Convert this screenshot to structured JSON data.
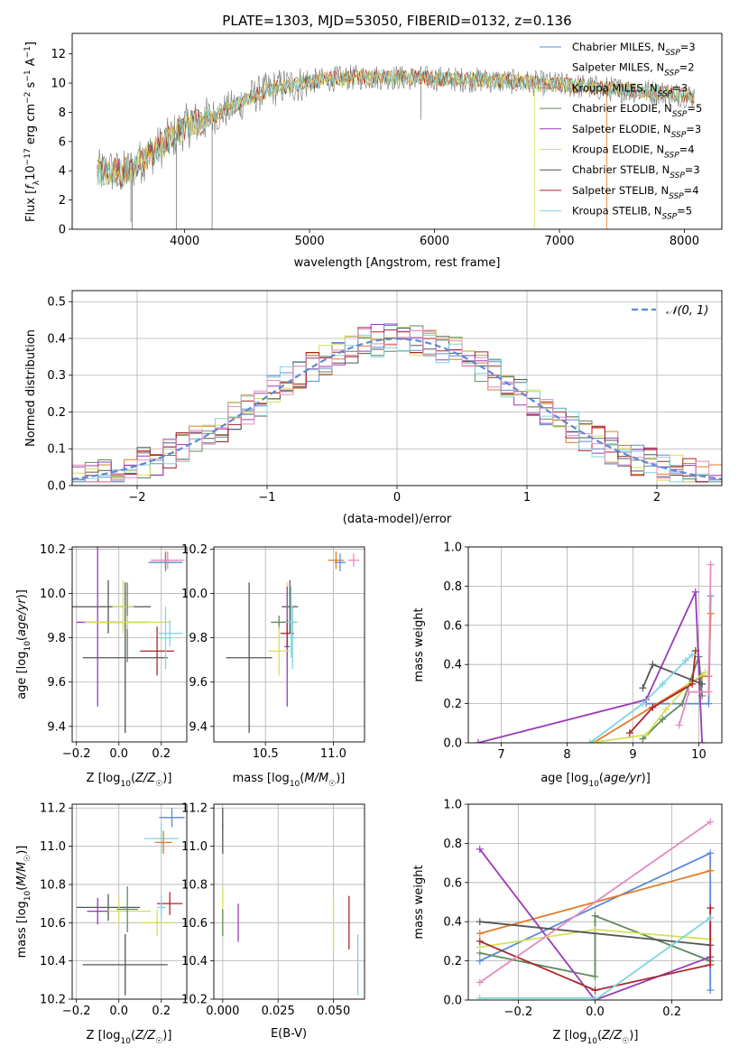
{
  "figure": {
    "title": "PLATE=1303, MJD=53050, FIBERID=0132, z=0.136"
  },
  "colors": {
    "Chabrier MILES": "#5b8ad8",
    "Salpeter MILES": "#ffffff",
    "Kroupa MILES": "#e07b28",
    "Chabrier ELODIE": "#5f8a5f",
    "Salpeter ELODIE": "#9a3bb8",
    "Kroupa ELODIE": "#d6e05a",
    "Chabrier STELIB": "#555555",
    "Salpeter STELIB": "#a8262a",
    "Kroupa STELIB": "#7fd4de",
    "pink": "#e58ac0",
    "gray_data": "#777777",
    "grid": "#b0b0b0",
    "gauss": "#5b8ad8"
  },
  "chart_data": [
    {
      "id": "spectrum",
      "type": "line",
      "title": "PLATE=1303, MJD=53050, FIBERID=0132, z=0.136",
      "xlabel": "wavelength [Angstrom, rest frame]",
      "ylabel": "Flux [f_λ 10^-17 erg cm^-2 s^-1 A^-1]",
      "xlim": [
        3100,
        8300
      ],
      "ylim": [
        0,
        13.4
      ],
      "xticks": [
        4000,
        5000,
        6000,
        7000,
        8000
      ],
      "yticks": [
        0,
        2,
        4,
        6,
        8,
        10,
        12
      ],
      "grid": false,
      "legend_position": "top-right",
      "continuum": {
        "x": [
          3300,
          3400,
          3500,
          3600,
          3700,
          3800,
          3900,
          4000,
          4100,
          4200,
          4300,
          4400,
          4500,
          4600,
          4700,
          4800,
          4900,
          5000,
          5200,
          5400,
          5600,
          5800,
          6000,
          6200,
          6400,
          6600,
          6800,
          7000,
          7200,
          7400,
          7600,
          7800,
          8000,
          8080
        ],
        "y": [
          3.9,
          4.0,
          3.8,
          4.3,
          5.0,
          5.6,
          6.3,
          7.0,
          7.3,
          7.6,
          8.0,
          8.4,
          8.9,
          9.3,
          9.6,
          9.8,
          9.9,
          10.1,
          10.3,
          10.4,
          10.4,
          10.35,
          10.3,
          10.25,
          10.2,
          10.1,
          10.0,
          9.9,
          9.75,
          9.6,
          9.5,
          9.35,
          9.2,
          9.1
        ]
      },
      "series": [
        {
          "name": "Chabrier MILES, N_SSP=3"
        },
        {
          "name": "Salpeter MILES, N_SSP=2"
        },
        {
          "name": "Kroupa MILES, N_SSP=3"
        },
        {
          "name": "Chabrier ELODIE, N_SSP=5"
        },
        {
          "name": "Salpeter ELODIE, N_SSP=3"
        },
        {
          "name": "Kroupa ELODIE, N_SSP=4"
        },
        {
          "name": "Chabrier STELIB, N_SSP=3"
        },
        {
          "name": "Salpeter STELIB, N_SSP=4"
        },
        {
          "name": "Kroupa STELIB, N_SSP=5"
        }
      ]
    },
    {
      "id": "residuals",
      "type": "line",
      "xlabel": "(data-model)/error",
      "ylabel": "Normed distribution",
      "xlim": [
        -2.5,
        2.5
      ],
      "ylim": [
        0,
        0.53
      ],
      "xticks": [
        -2,
        -1,
        0,
        1,
        2
      ],
      "yticks": [
        0.0,
        0.1,
        0.2,
        0.3,
        0.4,
        0.5
      ],
      "grid": true,
      "legend_position": "top-right",
      "gaussian_label": "𝒩(0, 1)",
      "bin_width": 0.1,
      "bin_start": -2.5
    },
    {
      "id": "age_Z",
      "type": "scatter",
      "xlabel": "Z [log10(Z/Z☉)]",
      "ylabel": "age [log10(age/yr)]",
      "xlim": [
        -0.22,
        0.32
      ],
      "ylim": [
        9.33,
        10.21
      ],
      "xticks": [
        -0.2,
        0.0,
        0.2
      ],
      "yticks": [
        9.4,
        9.6,
        9.8,
        10.0,
        10.2
      ],
      "grid": true,
      "points": [
        {
          "x": -0.05,
          "y": 9.94,
          "ex": 0.2,
          "ey": 0.12
        },
        {
          "x": 0.03,
          "y": 9.71,
          "ex": 0.2,
          "ey": 0.34
        },
        {
          "x": 0.02,
          "y": 9.94,
          "ex": 0.05,
          "ey": 0.12
        },
        {
          "x": 0.04,
          "y": 9.87,
          "ex": 0.1,
          "ey": 0.18
        },
        {
          "x": -0.1,
          "y": 9.87,
          "ex": 0.1,
          "ey": 0.38
        },
        {
          "x": 0.04,
          "y": 9.87,
          "ex": 0.2,
          "ey": 0.03
        },
        {
          "x": 0.18,
          "y": 9.74,
          "ex": 0.08,
          "ey": 0.11
        },
        {
          "x": 0.24,
          "y": 9.82,
          "ex": 0.06,
          "ey": 0.06
        },
        {
          "x": 0.22,
          "y": 9.8,
          "ex": 0.03,
          "ey": 0.14
        },
        {
          "x": 0.22,
          "y": 10.15,
          "ex": 0.06,
          "ey": 0.04
        },
        {
          "x": 0.22,
          "y": 10.14,
          "ex": 0.08,
          "ey": 0.04
        },
        {
          "x": 0.23,
          "y": 10.15,
          "ex": 0.08,
          "ey": 0.04
        }
      ]
    },
    {
      "id": "age_mass",
      "type": "scatter",
      "xlabel": "mass [log10(M/M☉)]",
      "ylabel": "",
      "xlim": [
        10.12,
        11.23
      ],
      "ylim": [
        9.33,
        10.21
      ],
      "xticks": [
        10.5,
        11.0
      ],
      "yticks": [
        9.4,
        9.6,
        9.8,
        10.0,
        10.2
      ],
      "grid": true,
      "points": [
        {
          "x": 10.38,
          "y": 9.71,
          "ex": 0.17,
          "ey": 0.34
        },
        {
          "x": 10.68,
          "y": 9.94,
          "ex": 0.06,
          "ey": 0.12
        },
        {
          "x": 10.66,
          "y": 9.87,
          "ex": 0.08,
          "ey": 0.18
        },
        {
          "x": 10.6,
          "y": 9.87,
          "ex": 0.06,
          "ey": 0.03
        },
        {
          "x": 10.66,
          "y": 9.76,
          "ex": 0.02,
          "ey": 0.27
        },
        {
          "x": 10.6,
          "y": 9.74,
          "ex": 0.08,
          "ey": 0.11
        },
        {
          "x": 10.66,
          "y": 9.82,
          "ex": 0.05,
          "ey": 0.06
        },
        {
          "x": 10.7,
          "y": 9.8,
          "ex": 0.02,
          "ey": 0.14
        },
        {
          "x": 10.69,
          "y": 9.87,
          "ex": 0.04,
          "ey": 0.16
        },
        {
          "x": 11.02,
          "y": 10.15,
          "ex": 0.06,
          "ey": 0.04
        },
        {
          "x": 11.05,
          "y": 10.14,
          "ex": 0.04,
          "ey": 0.04
        },
        {
          "x": 11.15,
          "y": 10.15,
          "ex": 0.04,
          "ey": 0.03
        }
      ]
    },
    {
      "id": "massweight_age",
      "type": "line",
      "xlabel": "age [log10(age/yr)]",
      "ylabel": "mass weight",
      "xlim": [
        6.5,
        10.35
      ],
      "ylim": [
        0,
        1.0
      ],
      "xticks": [
        7,
        8,
        9,
        10
      ],
      "yticks": [
        0.0,
        0.2,
        0.4,
        0.6,
        0.8,
        1.0
      ],
      "grid": true,
      "series": [
        {
          "key": "Chabrier MILES",
          "x": [
            9.2,
            10.15,
            10.18
          ],
          "y": [
            0.2,
            0.2,
            0.75
          ]
        },
        {
          "key": "Kroupa MILES",
          "x": [
            8.4,
            10.05,
            10.15,
            10.18
          ],
          "y": [
            0.0,
            0.34,
            0.34,
            0.66
          ]
        },
        {
          "key": "Chabrier ELODIE",
          "x": [
            9.15,
            9.45,
            9.75,
            10.0,
            10.05
          ],
          "y": [
            0.02,
            0.12,
            0.2,
            0.44,
            0.24
          ]
        },
        {
          "key": "Salpeter ELODIE",
          "x": [
            6.65,
            9.2,
            9.95,
            10.05
          ],
          "y": [
            0.0,
            0.22,
            0.77,
            0.0
          ]
        },
        {
          "key": "Kroupa ELODIE",
          "x": [
            8.35,
            9.2,
            9.5,
            9.85,
            10.1
          ],
          "y": [
            0.0,
            0.04,
            0.17,
            0.3,
            0.36
          ]
        },
        {
          "key": "Chabrier STELIB",
          "x": [
            9.15,
            9.3,
            10.05
          ],
          "y": [
            0.28,
            0.4,
            0.3
          ]
        },
        {
          "key": "Salpeter STELIB",
          "x": [
            8.95,
            9.3,
            9.9,
            9.95
          ],
          "y": [
            0.05,
            0.18,
            0.3,
            0.47
          ]
        },
        {
          "key": "Kroupa STELIB",
          "x": [
            8.35,
            9.15,
            9.45,
            9.8,
            9.9
          ],
          "y": [
            0.0,
            0.2,
            0.3,
            0.42,
            0.45
          ]
        },
        {
          "key": "pink",
          "x": [
            9.7,
            9.85,
            10.15,
            10.18
          ],
          "y": [
            0.09,
            0.26,
            0.26,
            0.91
          ]
        }
      ]
    },
    {
      "id": "mass_Z",
      "type": "scatter",
      "xlabel": "Z [log10(Z/Z☉)]",
      "ylabel": "mass [log10(M/M☉)]",
      "xlim": [
        -0.22,
        0.32
      ],
      "ylim": [
        10.2,
        11.22
      ],
      "xticks": [
        -0.2,
        0.0,
        0.2
      ],
      "yticks": [
        10.2,
        10.4,
        10.6,
        10.8,
        11.0,
        11.2
      ],
      "grid": true,
      "points": [
        {
          "x": 0.03,
          "y": 10.38,
          "ex": 0.2,
          "ey": 0.16
        },
        {
          "x": -0.05,
          "y": 10.68,
          "ex": 0.15,
          "ey": 0.07
        },
        {
          "x": 0.0,
          "y": 10.66,
          "ex": 0.15,
          "ey": 0.07
        },
        {
          "x": 0.04,
          "y": 10.67,
          "ex": 0.05,
          "ey": 0.12
        },
        {
          "x": -0.1,
          "y": 10.66,
          "ex": 0.05,
          "ey": 0.07
        },
        {
          "x": 0.18,
          "y": 10.6,
          "ex": 0.08,
          "ey": 0.07
        },
        {
          "x": 0.24,
          "y": 10.7,
          "ex": 0.06,
          "ey": 0.06
        },
        {
          "x": 0.2,
          "y": 10.68,
          "ex": 0.02,
          "ey": 0.06
        },
        {
          "x": 0.2,
          "y": 11.04,
          "ex": 0.08,
          "ey": 0.08
        },
        {
          "x": 0.21,
          "y": 11.02,
          "ex": 0.04,
          "ey": 0.06
        },
        {
          "x": 0.25,
          "y": 11.15,
          "ex": 0.06,
          "ey": 0.05
        }
      ]
    },
    {
      "id": "mass_EBV",
      "type": "scatter",
      "xlabel": "E(B-V)",
      "ylabel": "",
      "xlim": [
        -0.004,
        0.064
      ],
      "ylim": [
        10.2,
        11.22
      ],
      "xticks": [
        0.0,
        0.025,
        0.05
      ],
      "yticks": [
        10.2,
        10.4,
        10.6,
        10.8,
        11.0,
        11.2
      ],
      "grid": true,
      "points": [
        {
          "x": 0.0,
          "y": 11.04,
          "ex": 0.0,
          "ey": 0.08
        },
        {
          "x": 0.0,
          "y": 11.15,
          "ex": 0.0,
          "ey": 0.05
        },
        {
          "x": 0.0,
          "y": 10.66,
          "ex": 0.0,
          "ey": 0.12
        },
        {
          "x": 0.0,
          "y": 10.6,
          "ex": 0.0,
          "ey": 0.07
        },
        {
          "x": 0.007,
          "y": 10.6,
          "ex": 0.0,
          "ey": 0.1
        },
        {
          "x": 0.05,
          "y": 10.6,
          "ex": 0.0,
          "ey": 0.14
        },
        {
          "x": 0.057,
          "y": 10.6,
          "ex": 0.0,
          "ey": 0.14
        },
        {
          "x": 0.061,
          "y": 10.38,
          "ex": 0.0,
          "ey": 0.16
        }
      ]
    },
    {
      "id": "massweight_Z",
      "type": "line",
      "xlabel": "Z [log10(Z/Z☉)]",
      "ylabel": "mass weight",
      "xlim": [
        -0.33,
        0.33
      ],
      "ylim": [
        0,
        1.0
      ],
      "xticks": [
        -0.2,
        0.0,
        0.2
      ],
      "yticks": [
        0.0,
        0.2,
        0.4,
        0.6,
        0.8,
        1.0
      ],
      "grid": true,
      "series": [
        {
          "key": "Chabrier MILES",
          "x": [
            -0.3,
            0.3,
            0.3
          ],
          "y": [
            0.2,
            0.75,
            0.05
          ]
        },
        {
          "key": "Kroupa MILES",
          "x": [
            -0.3,
            0.3
          ],
          "y": [
            0.34,
            0.66
          ]
        },
        {
          "key": "Chabrier ELODIE",
          "x": [
            -0.3,
            0.0,
            0.0,
            0.3
          ],
          "y": [
            0.24,
            0.12,
            0.43,
            0.2
          ]
        },
        {
          "key": "Salpeter ELODIE",
          "x": [
            -0.3,
            0.0,
            0.3
          ],
          "y": [
            0.77,
            0.0,
            0.22
          ]
        },
        {
          "key": "Kroupa ELODIE",
          "x": [
            -0.3,
            0.0,
            0.3
          ],
          "y": [
            0.27,
            0.36,
            0.31
          ]
        },
        {
          "key": "Chabrier STELIB",
          "x": [
            -0.3,
            0.3
          ],
          "y": [
            0.4,
            0.28
          ]
        },
        {
          "key": "Salpeter STELIB",
          "x": [
            -0.3,
            0.0,
            0.3,
            0.3
          ],
          "y": [
            0.3,
            0.05,
            0.18,
            0.47
          ]
        },
        {
          "key": "Kroupa STELIB",
          "x": [
            -0.3,
            0.0,
            0.0,
            0.3
          ],
          "y": [
            0.01,
            0.01,
            0.0,
            0.42
          ]
        },
        {
          "key": "pink",
          "x": [
            -0.3,
            0.3
          ],
          "y": [
            0.09,
            0.91
          ]
        }
      ]
    }
  ]
}
